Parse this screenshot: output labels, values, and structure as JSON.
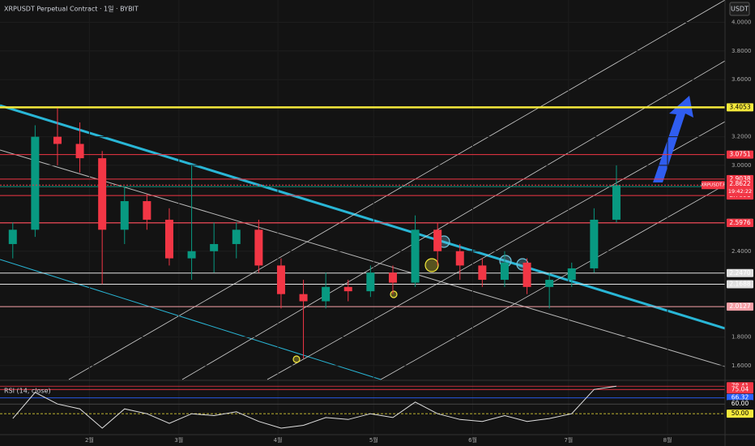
{
  "chart_data": {
    "type": "candlestick",
    "title": "XRPUSDT Perpetual Contract · 1일 · BYBIT",
    "currency": "USDT",
    "up_color": "#089981",
    "down_color": "#f23645",
    "xlim": [
      3,
      230
    ],
    "ylim": [
      1.503,
      4.156
    ],
    "xticks": [
      {
        "value": 31,
        "label": "2월"
      },
      {
        "value": 59,
        "label": "3월"
      },
      {
        "value": 90,
        "label": "4월"
      },
      {
        "value": 120,
        "label": "5월"
      },
      {
        "value": 151,
        "label": "6월"
      },
      {
        "value": 181,
        "label": "7월"
      },
      {
        "value": 212,
        "label": "8월"
      }
    ],
    "yticks": [
      {
        "value": 1.6,
        "label": "1.6000"
      },
      {
        "value": 1.8,
        "label": "1.8000"
      },
      {
        "value": 2.4,
        "label": "2.4000"
      },
      {
        "value": 3,
        "label": "3.0000"
      },
      {
        "value": 3.2,
        "label": "3.2000"
      },
      {
        "value": 3.6,
        "label": "3.6000"
      },
      {
        "value": 3.8,
        "label": "3.8000"
      },
      {
        "value": 4,
        "label": "4.0000"
      }
    ],
    "candles": {
      "x": [
        7,
        14,
        21,
        28,
        35,
        42,
        49,
        56,
        63,
        70,
        77,
        84,
        91,
        98,
        105,
        112,
        119,
        126,
        133,
        140,
        147,
        154,
        161,
        168,
        175,
        182,
        189,
        196
      ],
      "open": [
        2.45,
        2.55,
        3.2,
        3.15,
        3.05,
        2.55,
        2.75,
        2.62,
        2.35,
        2.4,
        2.45,
        2.55,
        2.3,
        2.1,
        2.05,
        2.15,
        2.12,
        2.25,
        2.18,
        2.55,
        2.4,
        2.3,
        2.2,
        2.32,
        2.15,
        2.2,
        2.28,
        2.62
      ],
      "high": [
        2.6,
        3.28,
        3.4,
        3.3,
        3.1,
        2.85,
        2.8,
        2.7,
        3.0,
        2.6,
        2.6,
        2.62,
        2.35,
        2.2,
        2.25,
        2.2,
        2.3,
        2.3,
        2.65,
        2.6,
        2.45,
        2.35,
        2.4,
        2.35,
        2.25,
        2.32,
        2.7,
        3.0
      ],
      "low": [
        2.35,
        2.5,
        3.0,
        2.95,
        2.17,
        2.45,
        2.55,
        2.3,
        2.2,
        2.25,
        2.35,
        2.25,
        2.0,
        1.65,
        2.0,
        2.05,
        2.08,
        2.1,
        2.15,
        2.3,
        2.2,
        2.15,
        2.15,
        2.1,
        2.0,
        2.15,
        2.25,
        2.6
      ],
      "close": [
        2.55,
        3.2,
        3.15,
        3.05,
        2.55,
        2.75,
        2.62,
        2.35,
        2.4,
        2.45,
        2.55,
        2.3,
        2.1,
        2.05,
        2.15,
        2.12,
        2.25,
        2.18,
        2.55,
        2.4,
        2.3,
        2.2,
        2.32,
        2.15,
        2.2,
        2.28,
        2.62,
        2.8622
      ]
    },
    "levels": [
      {
        "value": 3.4053,
        "label": "3.4053",
        "color": "#f5e93b"
      },
      {
        "value": 3.0751,
        "label": "3.0751",
        "color": "#f23645"
      },
      {
        "value": 2.9038,
        "label": "2.9038",
        "color": "#f23645"
      },
      {
        "value": 2.8514,
        "label": "2.8514",
        "color": "#089981"
      },
      {
        "value": 2.7891,
        "label": "2.7891",
        "color": "#f23645"
      },
      {
        "value": 2.5988,
        "label": "2.5988",
        "color": "#f7a1a8"
      },
      {
        "value": 2.5976,
        "label": "2.5976",
        "color": "#f23645"
      },
      {
        "value": 2.247,
        "label": "2.2470",
        "color": "#e0e0e0"
      },
      {
        "value": 2.1688,
        "label": "2.1688",
        "color": "#e0e0e0"
      },
      {
        "value": 2.0127,
        "label": "2.0127",
        "color": "#f7a1a8"
      }
    ],
    "last": {
      "value": 2.8622,
      "label": "2.8622",
      "symbol": "XRPUSDT.P",
      "countdown": "19:42:22",
      "color": "#f23645"
    },
    "rsi": {
      "title": "RSI (14, close)",
      "color": "#e0e0e0",
      "ylim": [
        30,
        82
      ],
      "values": [
        45,
        72,
        60,
        55,
        35,
        55,
        50,
        40,
        50,
        48,
        52,
        42,
        35,
        38,
        46,
        44,
        50,
        46,
        62,
        50,
        44,
        42,
        48,
        42,
        45,
        50,
        75,
        78.41
      ],
      "levels": [
        {
          "value": 78.41,
          "label": "78.41",
          "color": "#f23645"
        },
        {
          "value": 75.04,
          "label": "75.04",
          "color": "#f23645"
        },
        {
          "value": 66.32,
          "label": "66.32",
          "color": "#2962ff"
        },
        {
          "value": 60,
          "label": "60.00",
          "color": "#555555"
        },
        {
          "value": 50,
          "label": "50.00",
          "color": "#f5e93b"
        }
      ]
    }
  }
}
